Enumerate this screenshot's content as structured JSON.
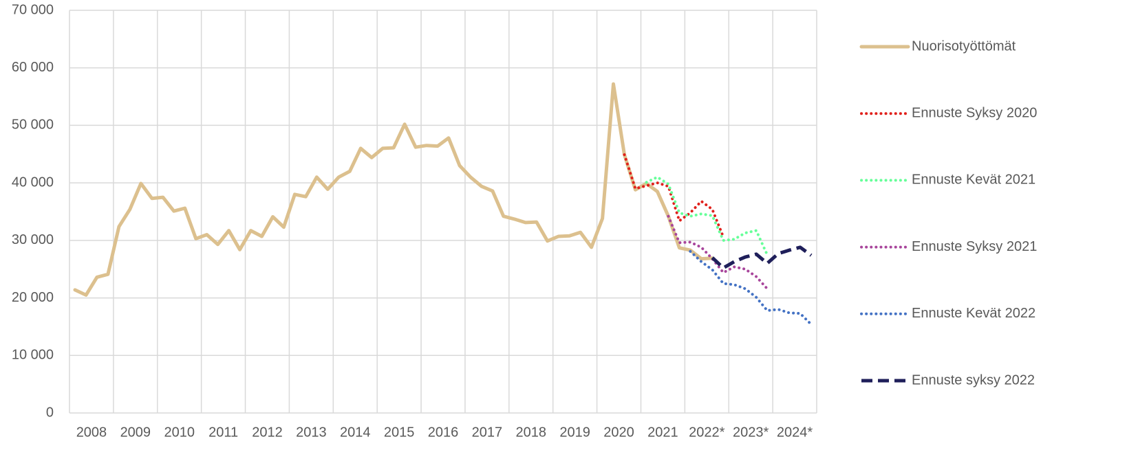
{
  "chart_data": {
    "type": "line",
    "categories": [
      "2008",
      null,
      null,
      null,
      "2009",
      null,
      null,
      null,
      "2010",
      null,
      null,
      null,
      "2011",
      null,
      null,
      null,
      "2012",
      null,
      null,
      null,
      "2013",
      null,
      null,
      null,
      "2014",
      null,
      null,
      null,
      "2015",
      null,
      null,
      null,
      "2016",
      null,
      null,
      null,
      "2017",
      null,
      null,
      null,
      "2018",
      null,
      null,
      null,
      "2019",
      null,
      null,
      null,
      "2020",
      null,
      null,
      null,
      "2021",
      null,
      null,
      null,
      "2022*",
      null,
      null,
      null,
      "2023*",
      null,
      null,
      null,
      "2024*",
      null,
      null,
      null
    ],
    "series": [
      {
        "name": "Nuorisotyöttömät",
        "color": "#dcc08e",
        "dash": "solid",
        "values": [
          21400,
          20500,
          23600,
          24100,
          32400,
          35400,
          39900,
          37300,
          37500,
          35100,
          35600,
          30300,
          31000,
          29300,
          31700,
          28400,
          31700,
          30700,
          34100,
          32300,
          38000,
          37600,
          41000,
          38900,
          41000,
          42000,
          46000,
          44400,
          46000,
          46100,
          50200,
          46200,
          46500,
          46400,
          47800,
          43000,
          41000,
          39400,
          38600,
          34200,
          33700,
          33100,
          33200,
          29900,
          30700,
          30800,
          31400,
          28800,
          33800,
          57200,
          44900,
          38800,
          39900,
          38500,
          34200,
          28700,
          28300,
          26800,
          26900,
          null,
          null,
          null,
          null,
          null,
          null,
          null,
          null,
          null
        ]
      },
      {
        "name": "Ennuste Syksy 2020",
        "color": "#e0201b",
        "dash": "dot",
        "values": [
          null,
          null,
          null,
          null,
          null,
          null,
          null,
          null,
          null,
          null,
          null,
          null,
          null,
          null,
          null,
          null,
          null,
          null,
          null,
          null,
          null,
          null,
          null,
          null,
          null,
          null,
          null,
          null,
          null,
          null,
          null,
          null,
          null,
          null,
          null,
          null,
          null,
          null,
          null,
          null,
          null,
          null,
          null,
          null,
          null,
          null,
          null,
          null,
          null,
          null,
          44900,
          39000,
          39500,
          40000,
          39400,
          33400,
          34800,
          36800,
          35400,
          30600,
          null,
          null,
          null,
          null,
          null,
          null,
          null,
          null
        ]
      },
      {
        "name": "Ennuste Kevät 2021",
        "color": "#66ff99",
        "dash": "dot",
        "values": [
          null,
          null,
          null,
          null,
          null,
          null,
          null,
          null,
          null,
          null,
          null,
          null,
          null,
          null,
          null,
          null,
          null,
          null,
          null,
          null,
          null,
          null,
          null,
          null,
          null,
          null,
          null,
          null,
          null,
          null,
          null,
          null,
          null,
          null,
          null,
          null,
          null,
          null,
          null,
          null,
          null,
          null,
          null,
          null,
          null,
          null,
          null,
          null,
          null,
          null,
          null,
          null,
          40100,
          41000,
          39800,
          34800,
          34200,
          34600,
          34300,
          30000,
          30200,
          31300,
          31700,
          27500,
          null,
          null,
          null,
          null
        ]
      },
      {
        "name": "Ennuste Syksy 2021",
        "color": "#a8459b",
        "dash": "dot",
        "values": [
          null,
          null,
          null,
          null,
          null,
          null,
          null,
          null,
          null,
          null,
          null,
          null,
          null,
          null,
          null,
          null,
          null,
          null,
          null,
          null,
          null,
          null,
          null,
          null,
          null,
          null,
          null,
          null,
          null,
          null,
          null,
          null,
          null,
          null,
          null,
          null,
          null,
          null,
          null,
          null,
          null,
          null,
          null,
          null,
          null,
          null,
          null,
          null,
          null,
          null,
          null,
          null,
          null,
          null,
          34200,
          29600,
          29700,
          28800,
          26800,
          24400,
          25400,
          25000,
          23700,
          21600,
          null,
          null,
          null,
          null
        ]
      },
      {
        "name": "Ennuste Kevät 2022",
        "color": "#4472c4",
        "dash": "dot",
        "values": [
          null,
          null,
          null,
          null,
          null,
          null,
          null,
          null,
          null,
          null,
          null,
          null,
          null,
          null,
          null,
          null,
          null,
          null,
          null,
          null,
          null,
          null,
          null,
          null,
          null,
          null,
          null,
          null,
          null,
          null,
          null,
          null,
          null,
          null,
          null,
          null,
          null,
          null,
          null,
          null,
          null,
          null,
          null,
          null,
          null,
          null,
          null,
          null,
          null,
          null,
          null,
          null,
          null,
          null,
          null,
          null,
          28100,
          26300,
          24900,
          22500,
          22300,
          21600,
          20100,
          17800,
          18000,
          17400,
          17300,
          15400
        ]
      },
      {
        "name": "Ennuste syksy 2022",
        "color": "#1f1f5a",
        "dash": "dash",
        "values": [
          null,
          null,
          null,
          null,
          null,
          null,
          null,
          null,
          null,
          null,
          null,
          null,
          null,
          null,
          null,
          null,
          null,
          null,
          null,
          null,
          null,
          null,
          null,
          null,
          null,
          null,
          null,
          null,
          null,
          null,
          null,
          null,
          null,
          null,
          null,
          null,
          null,
          null,
          null,
          null,
          null,
          null,
          null,
          null,
          null,
          null,
          null,
          null,
          null,
          null,
          null,
          null,
          null,
          null,
          null,
          null,
          null,
          null,
          27000,
          25200,
          26300,
          27100,
          27600,
          26000,
          27700,
          28300,
          28800,
          27400
        ]
      }
    ],
    "ylim": [
      0,
      70000
    ],
    "yticks": [
      0,
      {
        "value": 10000,
        "label": "10 000"
      },
      {
        "value": 20000,
        "label": "20 000"
      },
      {
        "value": 30000,
        "label": "30 000"
      },
      {
        "value": 40000,
        "label": "40 000"
      },
      {
        "value": 50000,
        "label": "50 000"
      },
      {
        "value": 60000,
        "label": "60 000"
      },
      {
        "value": 70000,
        "label": "70 000"
      }
    ],
    "grid": true,
    "legend": "right"
  }
}
